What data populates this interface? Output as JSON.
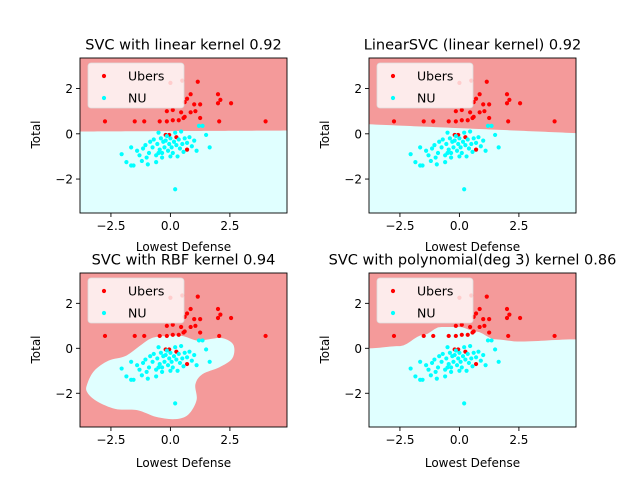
{
  "chart_data": [
    {
      "type": "scatter",
      "title": "SVC with linear kernel 0.92",
      "xlabel": "Lowest Defense",
      "ylabel": "Total",
      "kernel": "linear",
      "score": 0.92
    },
    {
      "type": "scatter",
      "title": "LinearSVC (linear kernel) 0.92",
      "xlabel": "Lowest Defense",
      "ylabel": "Total",
      "kernel": "linearsvc",
      "score": 0.92
    },
    {
      "type": "scatter",
      "title": "SVC with RBF kernel 0.94",
      "xlabel": "Lowest Defense",
      "ylabel": "Total",
      "kernel": "rbf",
      "score": 0.94
    },
    {
      "type": "scatter",
      "title": "SVC with polynomial(deg 3) kernel 0.86",
      "xlabel": "Lowest Defense",
      "ylabel": "Total",
      "kernel": "poly",
      "score": 0.86
    }
  ],
  "shared": {
    "xlim": [
      -3.8,
      4.9
    ],
    "ylim": [
      -3.5,
      3.35
    ],
    "xticks": [
      -2.5,
      0.0,
      2.5
    ],
    "xtick_labels": [
      "−2.5",
      "0.0",
      "2.5"
    ],
    "yticks": [
      -2,
      0,
      2
    ],
    "ytick_labels": [
      "−2",
      "0",
      "2"
    ],
    "legend": {
      "placement": "top-left",
      "entries": [
        {
          "label": "Ubers",
          "color": "#ff0000"
        },
        {
          "label": "NU",
          "color": "#00ffff"
        }
      ]
    },
    "region_colors": {
      "Ubers": "#f49a9a",
      "NU": "#e0ffff"
    },
    "series": [
      {
        "name": "Ubers",
        "color": "#ff0000",
        "points": [
          [
            0.0,
            2.25
          ],
          [
            0.5,
            2.35
          ],
          [
            1.15,
            2.3
          ],
          [
            0.6,
            1.4
          ],
          [
            0.7,
            1.55
          ],
          [
            0.85,
            1.75
          ],
          [
            1.0,
            1.3
          ],
          [
            1.25,
            1.3
          ],
          [
            2.0,
            1.75
          ],
          [
            2.1,
            1.5
          ],
          [
            2.55,
            1.35
          ],
          [
            2.0,
            1.35
          ],
          [
            -0.15,
            1.0
          ],
          [
            0.1,
            1.05
          ],
          [
            0.45,
            0.95
          ],
          [
            0.6,
            0.75
          ],
          [
            0.85,
            0.95
          ],
          [
            1.05,
            1.0
          ],
          [
            -2.75,
            0.55
          ],
          [
            -1.5,
            0.55
          ],
          [
            -1.1,
            0.55
          ],
          [
            -0.45,
            0.55
          ],
          [
            -0.15,
            0.55
          ],
          [
            0.1,
            0.6
          ],
          [
            0.35,
            0.6
          ],
          [
            0.55,
            0.7
          ],
          [
            1.25,
            0.7
          ],
          [
            2.05,
            0.55
          ],
          [
            4.0,
            0.55
          ],
          [
            -0.2,
            -0.05
          ],
          [
            -0.05,
            -0.05
          ],
          [
            0.25,
            -0.15
          ],
          [
            0.7,
            -0.7
          ]
        ]
      },
      {
        "name": "NU",
        "color": "#00ffff",
        "points": [
          [
            -2.05,
            -0.9
          ],
          [
            -1.65,
            -0.6
          ],
          [
            -1.85,
            -1.25
          ],
          [
            -1.65,
            -1.4
          ],
          [
            -1.55,
            -1.4
          ],
          [
            -1.3,
            -0.95
          ],
          [
            -1.2,
            -1.2
          ],
          [
            -1.15,
            -0.65
          ],
          [
            -1.05,
            -0.5
          ],
          [
            -1.0,
            -1.05
          ],
          [
            -0.9,
            -0.85
          ],
          [
            -0.85,
            -0.35
          ],
          [
            -0.75,
            -0.6
          ],
          [
            -0.7,
            -0.25
          ],
          [
            -0.6,
            -0.95
          ],
          [
            -0.55,
            -0.45
          ],
          [
            -0.5,
            0.05
          ],
          [
            -0.45,
            -0.7
          ],
          [
            -0.4,
            -0.2
          ],
          [
            -0.35,
            -0.85
          ],
          [
            -0.3,
            -0.35
          ],
          [
            -0.25,
            -0.6
          ],
          [
            -0.2,
            -0.3
          ],
          [
            -0.15,
            -0.1
          ],
          [
            -0.1,
            -0.75
          ],
          [
            -0.05,
            -0.45
          ],
          [
            0.0,
            -0.2
          ],
          [
            0.05,
            -0.6
          ],
          [
            0.1,
            -0.85
          ],
          [
            0.15,
            -0.35
          ],
          [
            0.2,
            0.05
          ],
          [
            0.25,
            -0.5
          ],
          [
            0.3,
            -1.0
          ],
          [
            0.35,
            -0.25
          ],
          [
            0.4,
            -0.65
          ],
          [
            0.45,
            0.1
          ],
          [
            0.5,
            -0.45
          ],
          [
            0.55,
            -0.8
          ],
          [
            0.6,
            -0.2
          ],
          [
            0.7,
            -0.4
          ],
          [
            0.8,
            -0.15
          ],
          [
            0.9,
            -0.55
          ],
          [
            1.0,
            -0.3
          ],
          [
            1.1,
            -0.75
          ],
          [
            1.2,
            0.35
          ],
          [
            1.35,
            0.35
          ],
          [
            1.5,
            -0.05
          ],
          [
            1.65,
            -0.6
          ],
          [
            -0.95,
            -1.35
          ],
          [
            -0.6,
            -1.25
          ],
          [
            -0.35,
            -1.05
          ],
          [
            -1.4,
            -0.75
          ],
          [
            0.2,
            -2.45
          ],
          [
            -0.5,
            -0.85
          ],
          [
            0.0,
            -1.0
          ]
        ]
      }
    ]
  }
}
